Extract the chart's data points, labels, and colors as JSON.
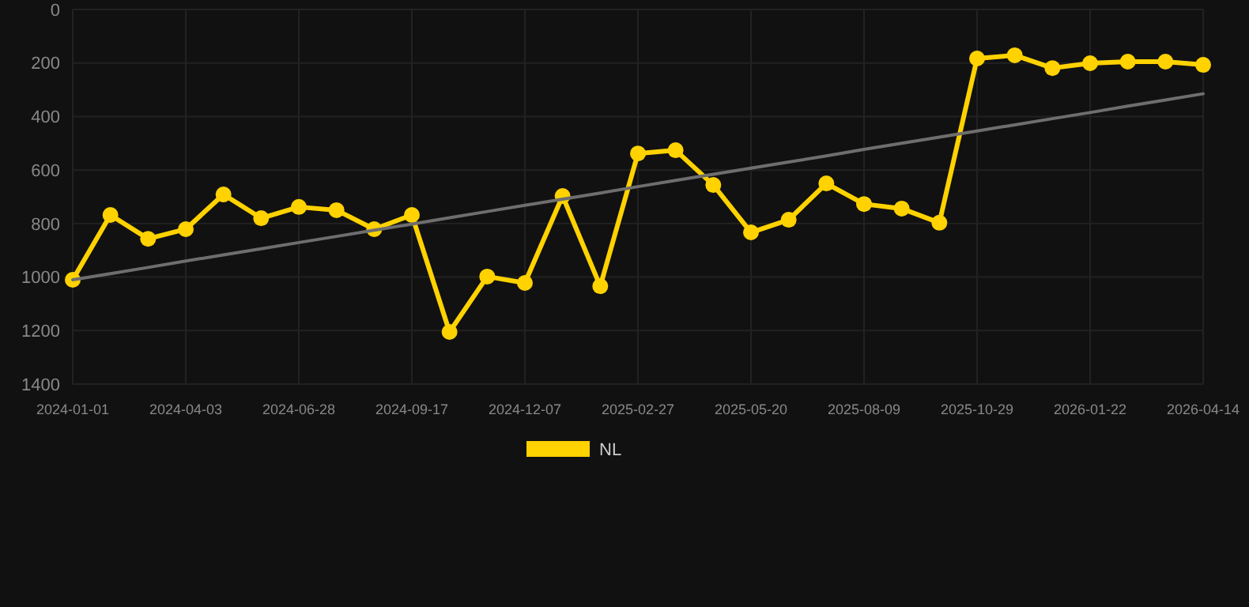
{
  "chart_data": {
    "type": "line",
    "categories": [
      "2024-01-01",
      null,
      null,
      "2024-04-03",
      null,
      null,
      "2024-06-28",
      null,
      null,
      "2024-09-17",
      null,
      null,
      "2024-12-07",
      null,
      null,
      "2025-02-27",
      null,
      null,
      "2025-05-20",
      null,
      null,
      "2025-08-09",
      null,
      null,
      "2025-10-29",
      null,
      null,
      "2026-01-22",
      null,
      null,
      "2026-04-14"
    ],
    "series": [
      {
        "name": "NL",
        "color": "#ffd200",
        "marker": "circle",
        "values": [
          1010,
          768,
          857,
          821,
          691,
          780,
          738,
          750,
          821,
          768,
          1205,
          998,
          1022,
          697,
          1034,
          538,
          526,
          656,
          833,
          786,
          650,
          727,
          744,
          797,
          183,
          171,
          219,
          201,
          195,
          195,
          207
        ]
      },
      {
        "type": "line",
        "color": "#6e6e6e",
        "marker": "none",
        "values": [
          1010,
          987,
          964,
          940,
          917,
          894,
          871,
          848,
          825,
          802,
          778,
          755,
          732,
          709,
          686,
          662,
          639,
          616,
          593,
          570,
          547,
          523,
          500,
          477,
          454,
          431,
          408,
          385,
          361,
          338,
          315
        ]
      }
    ],
    "ylim": [
      1400,
      0
    ],
    "yticks": [
      0,
      200,
      400,
      600,
      800,
      1000,
      1200,
      1400
    ],
    "grid": true,
    "legend": "bottom"
  }
}
